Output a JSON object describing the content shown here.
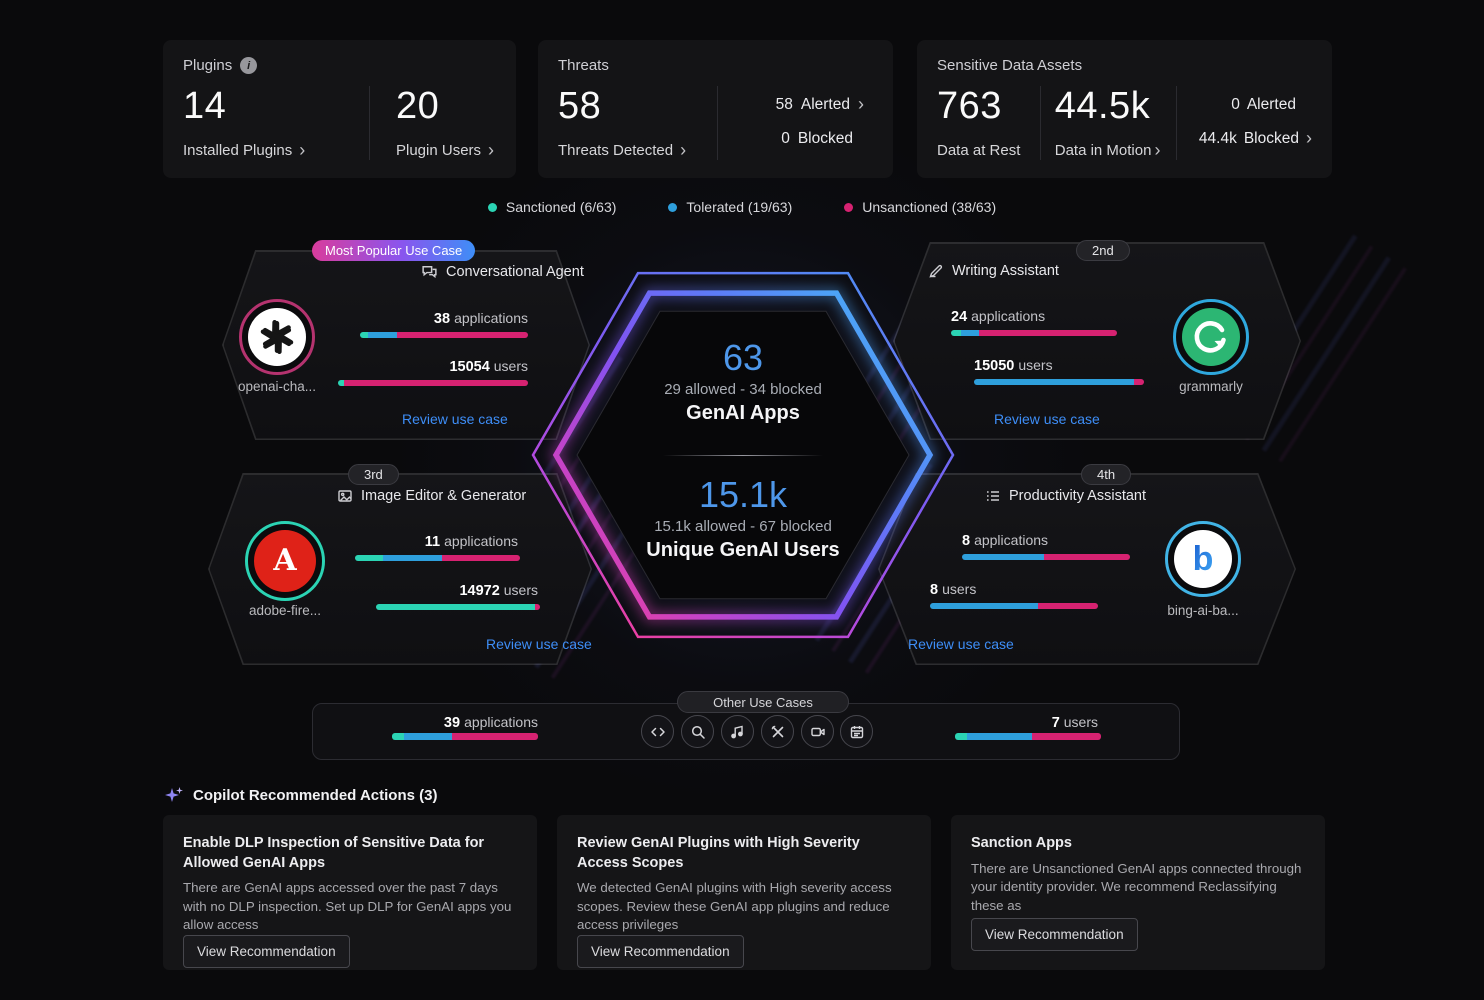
{
  "chevron": "›",
  "info_glyph": "i",
  "stat_cards": {
    "plugins": {
      "title": "Plugins",
      "metrics": [
        {
          "value": "14",
          "label": "Installed Plugins"
        },
        {
          "value": "20",
          "label": "Plugin Users"
        }
      ]
    },
    "threats": {
      "title": "Threats",
      "primary": {
        "value": "58",
        "label": "Threats Detected"
      },
      "side": [
        {
          "value": "58",
          "label": "Alerted"
        },
        {
          "value": "0",
          "label": "Blocked"
        }
      ]
    },
    "sensitive_data": {
      "title": "Sensitive Data Assets",
      "metrics": [
        {
          "value": "763",
          "label": "Data at Rest"
        },
        {
          "value": "44.5k",
          "label": "Data in Motion"
        }
      ],
      "side": [
        {
          "value": "0",
          "label": "Alerted"
        },
        {
          "value": "44.4k",
          "label": "Blocked"
        }
      ]
    }
  },
  "legend": [
    {
      "label": "Sanctioned (6/63)",
      "color": "#2BD4B4"
    },
    {
      "label": "Tolerated (19/63)",
      "color": "#2E9FDC"
    },
    {
      "label": "Unsanctioned (38/63)",
      "color": "#D62271"
    }
  ],
  "hexagon": {
    "apps_value": "63",
    "apps_detail": "29 allowed - 34 blocked",
    "apps_label": "GenAI Apps",
    "users_value": "15.1k",
    "users_detail": "15.1k allowed - 67 blocked",
    "users_label": "Unique GenAI Users"
  },
  "use_cases": [
    {
      "badge": "Most Popular Use Case",
      "title": "Conversational Agent",
      "app_name": "openai-cha...",
      "apps_count": "38",
      "apps_unit": "applications",
      "apps_segments": [
        {
          "color": "#2BD4B4",
          "pct": 5
        },
        {
          "color": "#2E9FDC",
          "pct": 17
        },
        {
          "color": "#D62271",
          "pct": 78
        }
      ],
      "users_count": "15054",
      "users_unit": "users",
      "users_segments": [
        {
          "color": "#2BD4B4",
          "pct": 3
        },
        {
          "color": "#D62271",
          "pct": 97
        }
      ],
      "link": "Review use case"
    },
    {
      "badge": "2nd",
      "title": "Writing Assistant",
      "app_name": "grammarly",
      "apps_count": "24",
      "apps_unit": "applications",
      "apps_segments": [
        {
          "color": "#2BD4B4",
          "pct": 6
        },
        {
          "color": "#2E9FDC",
          "pct": 11
        },
        {
          "color": "#D62271",
          "pct": 83
        }
      ],
      "users_count": "15050",
      "users_unit": "users",
      "users_segments": [
        {
          "color": "#2E9FDC",
          "pct": 94
        },
        {
          "color": "#D62271",
          "pct": 6
        }
      ],
      "link": "Review use case"
    },
    {
      "badge": "3rd",
      "title": "Image Editor & Generator",
      "app_name": "adobe-fire...",
      "apps_count": "11",
      "apps_unit": "applications",
      "apps_segments": [
        {
          "color": "#2BD4B4",
          "pct": 17
        },
        {
          "color": "#2E9FDC",
          "pct": 36
        },
        {
          "color": "#D62271",
          "pct": 47
        }
      ],
      "users_count": "14972",
      "users_unit": "users",
      "users_segments": [
        {
          "color": "#2BD4B4",
          "pct": 97
        },
        {
          "color": "#D62271",
          "pct": 3
        }
      ],
      "link": "Review use case"
    },
    {
      "badge": "4th",
      "title": "Productivity Assistant",
      "app_name": "bing-ai-ba...",
      "apps_count": "8",
      "apps_unit": "applications",
      "apps_segments": [
        {
          "color": "#2E9FDC",
          "pct": 49
        },
        {
          "color": "#D62271",
          "pct": 51
        }
      ],
      "users_count": "8",
      "users_unit": "users",
      "users_segments": [
        {
          "color": "#2E9FDC",
          "pct": 64
        },
        {
          "color": "#D62271",
          "pct": 36
        }
      ],
      "link": "Review use case"
    }
  ],
  "other_use_cases": {
    "tab": "Other Use Cases",
    "apps_count": "39",
    "apps_unit": "applications",
    "apps_segments": [
      {
        "color": "#2BD4B4",
        "pct": 8
      },
      {
        "color": "#2E9FDC",
        "pct": 33
      },
      {
        "color": "#D62271",
        "pct": 59
      }
    ],
    "users_count": "7",
    "users_unit": "users",
    "users_segments": [
      {
        "color": "#2BD4B4",
        "pct": 8
      },
      {
        "color": "#2E9FDC",
        "pct": 45
      },
      {
        "color": "#D62271",
        "pct": 47
      }
    ],
    "icons": [
      "code-icon",
      "search-icon",
      "music-icon",
      "tools-icon",
      "video-icon",
      "calendar-icon"
    ]
  },
  "copilot": {
    "title": "Copilot Recommended Actions (3)",
    "cards": [
      {
        "title": "Enable DLP Inspection of Sensitive Data for Allowed GenAI Apps",
        "body": "There are GenAI apps accessed over the past 7 days with no DLP inspection. Set up DLP for GenAI apps you allow access",
        "button": "View Recommendation"
      },
      {
        "title": "Review GenAI Plugins with High Severity Access Scopes",
        "body": "We detected GenAI plugins with High severity access scopes. Review these GenAI app plugins and reduce access privileges",
        "button": "View Recommendation"
      },
      {
        "title": "Sanction Apps",
        "body": "There are Unsanctioned GenAI apps connected through your identity provider. We recommend Reclassifying these as",
        "button": "View Recommendation"
      }
    ]
  }
}
